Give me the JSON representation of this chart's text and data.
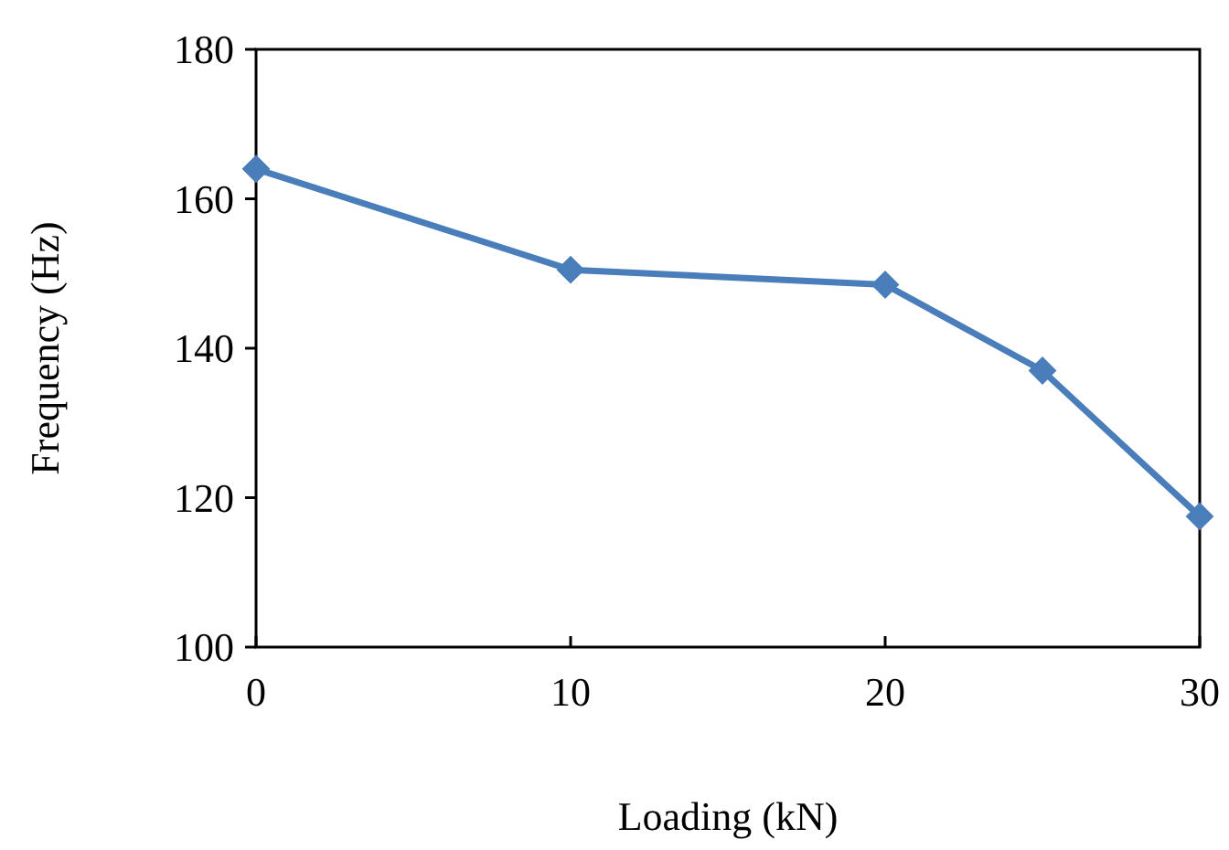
{
  "chart_data": {
    "type": "line",
    "xlabel": "Loading (kN)",
    "ylabel": "Frequency (Hz)",
    "x": [
      0,
      10,
      20,
      25,
      30
    ],
    "series": [
      {
        "color": "#4a7ebb",
        "values": [
          164,
          150.5,
          148.5,
          137,
          117.5
        ]
      }
    ],
    "xlim": [
      0,
      30
    ],
    "xticks": [
      0,
      10,
      20,
      30
    ],
    "ylim": [
      100,
      180
    ],
    "yticks": [
      100,
      120,
      140,
      160,
      180
    ],
    "marker": "diamond",
    "line_style": "solid"
  }
}
